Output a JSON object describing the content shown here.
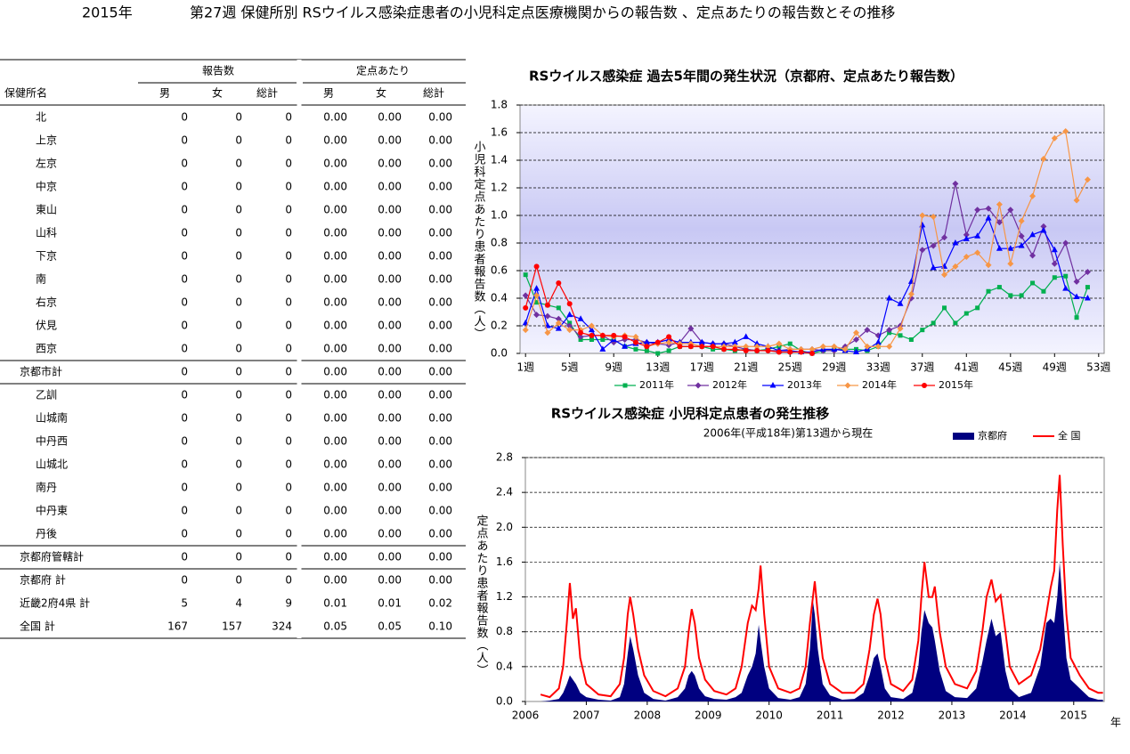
{
  "header": {
    "year": "2015年",
    "title": "第27週 保健所別 RSウイルス感染症患者の小児科定点医療機関からの報告数 、定点あたりの報告数とその推移"
  },
  "table": {
    "group_headers": [
      "報告数",
      "定点あたり"
    ],
    "columns": [
      "保健所名",
      "男",
      "女",
      "総計",
      "男",
      "女",
      "総計"
    ],
    "rows": [
      [
        "北",
        "0",
        "0",
        "0",
        "0.00",
        "0.00",
        "0.00"
      ],
      [
        "上京",
        "0",
        "0",
        "0",
        "0.00",
        "0.00",
        "0.00"
      ],
      [
        "左京",
        "0",
        "0",
        "0",
        "0.00",
        "0.00",
        "0.00"
      ],
      [
        "中京",
        "0",
        "0",
        "0",
        "0.00",
        "0.00",
        "0.00"
      ],
      [
        "東山",
        "0",
        "0",
        "0",
        "0.00",
        "0.00",
        "0.00"
      ],
      [
        "山科",
        "0",
        "0",
        "0",
        "0.00",
        "0.00",
        "0.00"
      ],
      [
        "下京",
        "0",
        "0",
        "0",
        "0.00",
        "0.00",
        "0.00"
      ],
      [
        "南",
        "0",
        "0",
        "0",
        "0.00",
        "0.00",
        "0.00"
      ],
      [
        "右京",
        "0",
        "0",
        "0",
        "0.00",
        "0.00",
        "0.00"
      ],
      [
        "伏見",
        "0",
        "0",
        "0",
        "0.00",
        "0.00",
        "0.00"
      ],
      [
        "西京",
        "0",
        "0",
        "0",
        "0.00",
        "0.00",
        "0.00"
      ],
      [
        "京都市計",
        "0",
        "0",
        "0",
        "0.00",
        "0.00",
        "0.00"
      ],
      [
        "乙訓",
        "0",
        "0",
        "0",
        "0.00",
        "0.00",
        "0.00"
      ],
      [
        "山城南",
        "0",
        "0",
        "0",
        "0.00",
        "0.00",
        "0.00"
      ],
      [
        "中丹西",
        "0",
        "0",
        "0",
        "0.00",
        "0.00",
        "0.00"
      ],
      [
        "山城北",
        "0",
        "0",
        "0",
        "0.00",
        "0.00",
        "0.00"
      ],
      [
        "南丹",
        "0",
        "0",
        "0",
        "0.00",
        "0.00",
        "0.00"
      ],
      [
        "中丹東",
        "0",
        "0",
        "0",
        "0.00",
        "0.00",
        "0.00"
      ],
      [
        "丹後",
        "0",
        "0",
        "0",
        "0.00",
        "0.00",
        "0.00"
      ],
      [
        "京都府管轄計",
        "0",
        "0",
        "0",
        "0.00",
        "0.00",
        "0.00"
      ],
      [
        "京都府 計",
        "0",
        "0",
        "0",
        "0.00",
        "0.00",
        "0.00"
      ],
      [
        "近畿2府4県 計",
        "5",
        "4",
        "9",
        "0.01",
        "0.01",
        "0.02"
      ],
      [
        "全国 計",
        "167",
        "157",
        "324",
        "0.05",
        "0.05",
        "0.10"
      ]
    ]
  },
  "chart_data": [
    {
      "type": "line",
      "title": "RSウイルス感染症 過去5年間の発生状況（京都府、定点あたり報告数）",
      "ylabel": "小児科定点あたり患者報告数（人）",
      "legend": "bottom",
      "grid": true,
      "x": [
        1,
        2,
        3,
        4,
        5,
        6,
        7,
        8,
        9,
        10,
        11,
        12,
        13,
        14,
        15,
        16,
        17,
        18,
        19,
        20,
        21,
        22,
        23,
        24,
        25,
        26,
        27,
        28,
        29,
        30,
        31,
        32,
        33,
        34,
        35,
        36,
        37,
        38,
        39,
        40,
        41,
        42,
        43,
        44,
        45,
        46,
        47,
        48,
        49,
        50,
        51,
        52,
        53
      ],
      "xlim": [
        0.5,
        53.5
      ],
      "xticks": [
        {
          "value": 1,
          "label": "1週"
        },
        {
          "value": 5,
          "label": "5週"
        },
        {
          "value": 9,
          "label": "9週"
        },
        {
          "value": 13,
          "label": "13週"
        },
        {
          "value": 17,
          "label": "17週"
        },
        {
          "value": 21,
          "label": "21週"
        },
        {
          "value": 25,
          "label": "25週"
        },
        {
          "value": 29,
          "label": "29週"
        },
        {
          "value": 33,
          "label": "33週"
        },
        {
          "value": 37,
          "label": "37週"
        },
        {
          "value": 41,
          "label": "41週"
        },
        {
          "value": 45,
          "label": "45週"
        },
        {
          "value": 49,
          "label": "49週"
        },
        {
          "value": 53,
          "label": "53週"
        }
      ],
      "ylim": [
        0,
        1.8
      ],
      "yticks": [
        {
          "value": 0,
          "label": "0.0"
        },
        0.2,
        0.4,
        0.6,
        0.8,
        {
          "value": 1,
          "label": "1.0"
        },
        1.2,
        1.4,
        1.6,
        1.8
      ],
      "series": [
        {
          "name": "2011年",
          "color": "#00b050",
          "marker": "square",
          "values": [
            0.57,
            0.37,
            0.35,
            0.33,
            0.22,
            0.1,
            0.1,
            0.1,
            0.1,
            0.05,
            0.03,
            0.02,
            0.0,
            0.02,
            0.05,
            0.05,
            0.05,
            0.03,
            0.03,
            0.02,
            0.03,
            0.02,
            0.03,
            0.05,
            0.07,
            0.02,
            0.0,
            0.02,
            0.03,
            0.03,
            0.03,
            0.02,
            0.05,
            0.15,
            0.13,
            0.1,
            0.17,
            0.22,
            0.33,
            0.22,
            0.29,
            0.33,
            0.45,
            0.48,
            0.42,
            0.42,
            0.51,
            0.45,
            0.55,
            0.56,
            0.26,
            0.48,
            null
          ]
        },
        {
          "name": "2012年",
          "color": "#7030a0",
          "marker": "diamond",
          "values": [
            0.42,
            0.28,
            0.27,
            0.25,
            0.2,
            0.12,
            0.13,
            0.13,
            0.08,
            0.1,
            0.1,
            0.08,
            0.07,
            0.06,
            0.08,
            0.18,
            0.08,
            0.07,
            0.07,
            0.05,
            0.03,
            0.02,
            0.02,
            0.02,
            0.03,
            0.03,
            0.03,
            0.02,
            0.02,
            0.05,
            0.1,
            0.17,
            0.13,
            0.17,
            0.2,
            0.4,
            0.75,
            0.78,
            0.84,
            1.23,
            0.86,
            1.04,
            1.05,
            0.95,
            1.04,
            0.85,
            0.71,
            0.92,
            0.65,
            0.8,
            0.52,
            0.59,
            null
          ]
        },
        {
          "name": "2013年",
          "color": "#0000ff",
          "marker": "triangle",
          "values": [
            0.22,
            0.47,
            0.2,
            0.18,
            0.28,
            0.25,
            0.17,
            0.03,
            0.1,
            0.05,
            0.07,
            0.08,
            0.08,
            0.1,
            0.08,
            0.08,
            0.08,
            0.07,
            0.07,
            0.08,
            0.12,
            0.07,
            0.05,
            0.02,
            0.02,
            0.01,
            0.01,
            0.03,
            0.03,
            0.02,
            0.01,
            0.03,
            0.08,
            0.4,
            0.36,
            0.52,
            0.93,
            0.62,
            0.63,
            0.8,
            0.83,
            0.85,
            0.98,
            0.76,
            0.76,
            0.78,
            0.86,
            0.89,
            0.75,
            0.47,
            0.41,
            0.4,
            null
          ]
        },
        {
          "name": "2014年",
          "color": "#f79646",
          "marker": "diamond",
          "values": [
            0.17,
            0.42,
            0.15,
            0.22,
            0.17,
            0.17,
            0.2,
            0.13,
            0.12,
            0.13,
            0.12,
            0.05,
            0.07,
            0.08,
            0.07,
            0.07,
            0.05,
            0.05,
            0.05,
            0.05,
            0.05,
            0.05,
            0.05,
            0.07,
            0.03,
            0.03,
            0.03,
            0.05,
            0.05,
            0.03,
            0.15,
            0.05,
            0.05,
            0.05,
            0.18,
            0.43,
            1.0,
            0.99,
            0.57,
            0.63,
            0.7,
            0.73,
            0.64,
            1.08,
            0.65,
            0.96,
            1.14,
            1.41,
            1.56,
            1.61,
            1.11,
            1.26,
            null
          ]
        },
        {
          "name": "2015年",
          "color": "#ff0000",
          "marker": "circle",
          "values": [
            0.33,
            0.63,
            0.35,
            0.51,
            0.36,
            0.15,
            0.13,
            0.13,
            0.13,
            0.12,
            0.08,
            0.05,
            0.08,
            0.12,
            0.05,
            0.05,
            0.05,
            0.05,
            0.03,
            0.03,
            0.02,
            0.02,
            0.02,
            0.01,
            0.01,
            0.01,
            0.0,
            null,
            null,
            null,
            null,
            null,
            null,
            null,
            null,
            null,
            null,
            null,
            null,
            null,
            null,
            null,
            null,
            null,
            null,
            null,
            null,
            null,
            null,
            null,
            null,
            null,
            null
          ]
        }
      ]
    },
    {
      "type": "line",
      "title": "RSウイルス感染症 小児科定点患者の発生推移",
      "subtitle": "2006年(平成18年)第13週から現在",
      "ylabel": "定点あたり患者報告数（人）",
      "xlabel": "年",
      "legend": "top-right",
      "grid": true,
      "x": [
        2006.25,
        2006.4,
        2006.55,
        2006.62,
        2006.68,
        2006.73,
        2006.78,
        2006.83,
        2006.9,
        2007.0,
        2007.2,
        2007.4,
        2007.55,
        2007.62,
        2007.68,
        2007.72,
        2007.77,
        2007.85,
        2007.95,
        2008.1,
        2008.3,
        2008.5,
        2008.62,
        2008.68,
        2008.73,
        2008.78,
        2008.85,
        2008.95,
        2009.1,
        2009.3,
        2009.45,
        2009.55,
        2009.65,
        2009.72,
        2009.78,
        2009.83,
        2009.86,
        2009.92,
        2010.0,
        2010.15,
        2010.35,
        2010.5,
        2010.6,
        2010.67,
        2010.72,
        2010.75,
        2010.8,
        2010.88,
        2011.0,
        2011.2,
        2011.4,
        2011.55,
        2011.65,
        2011.72,
        2011.78,
        2011.83,
        2011.9,
        2012.0,
        2012.2,
        2012.35,
        2012.45,
        2012.5,
        2012.55,
        2012.62,
        2012.68,
        2012.72,
        2012.8,
        2012.9,
        2013.05,
        2013.25,
        2013.4,
        2013.5,
        2013.57,
        2013.65,
        2013.72,
        2013.8,
        2013.88,
        2013.95,
        2014.1,
        2014.3,
        2014.45,
        2014.55,
        2014.62,
        2014.68,
        2014.73,
        2014.77,
        2014.82,
        2014.88,
        2014.95,
        2015.1,
        2015.25,
        2015.4,
        2015.48
      ],
      "xlim": [
        2006,
        2015.5
      ],
      "xticks": [
        2006,
        2007,
        2008,
        2009,
        2010,
        2011,
        2012,
        2013,
        2014,
        2015
      ],
      "ylim": [
        0,
        2.8
      ],
      "yticks": [
        {
          "value": 0,
          "label": "0.0"
        },
        0.4,
        0.8,
        1.2,
        1.6,
        {
          "value": 2,
          "label": "2.0"
        },
        2.4,
        2.8
      ],
      "series": [
        {
          "name": "京都府",
          "color": "#000080",
          "fill": true,
          "values": [
            0.0,
            0.01,
            0.03,
            0.1,
            0.2,
            0.3,
            0.25,
            0.2,
            0.1,
            0.05,
            0.02,
            0.01,
            0.05,
            0.2,
            0.55,
            0.75,
            0.6,
            0.3,
            0.1,
            0.03,
            0.01,
            0.05,
            0.15,
            0.3,
            0.35,
            0.3,
            0.15,
            0.06,
            0.03,
            0.02,
            0.05,
            0.1,
            0.3,
            0.4,
            0.55,
            0.88,
            0.7,
            0.4,
            0.15,
            0.04,
            0.02,
            0.05,
            0.2,
            0.6,
            1.15,
            1.0,
            0.6,
            0.2,
            0.07,
            0.02,
            0.03,
            0.1,
            0.3,
            0.5,
            0.55,
            0.4,
            0.15,
            0.05,
            0.03,
            0.1,
            0.4,
            0.8,
            1.05,
            0.9,
            0.85,
            0.7,
            0.35,
            0.12,
            0.05,
            0.04,
            0.15,
            0.45,
            0.7,
            0.95,
            0.75,
            0.8,
            0.35,
            0.15,
            0.05,
            0.1,
            0.4,
            0.9,
            0.95,
            0.9,
            1.2,
            1.6,
            1.1,
            0.5,
            0.25,
            0.15,
            0.05,
            0.02,
            0.02
          ]
        },
        {
          "name": "全 国",
          "color": "#ff0000",
          "fill": false,
          "values": [
            0.08,
            0.05,
            0.15,
            0.4,
            0.9,
            1.36,
            0.95,
            1.07,
            0.5,
            0.2,
            0.08,
            0.06,
            0.2,
            0.5,
            1.0,
            1.2,
            1.0,
            0.6,
            0.3,
            0.12,
            0.06,
            0.15,
            0.4,
            0.8,
            1.06,
            0.9,
            0.5,
            0.25,
            0.12,
            0.08,
            0.15,
            0.4,
            0.9,
            1.1,
            1.05,
            1.3,
            1.56,
            1.0,
            0.4,
            0.15,
            0.1,
            0.15,
            0.4,
            0.9,
            1.2,
            1.38,
            1.0,
            0.5,
            0.2,
            0.1,
            0.1,
            0.2,
            0.6,
            1.0,
            1.18,
            1.0,
            0.5,
            0.2,
            0.12,
            0.25,
            0.7,
            1.2,
            1.6,
            1.2,
            1.2,
            1.32,
            0.8,
            0.4,
            0.2,
            0.15,
            0.35,
            0.8,
            1.2,
            1.4,
            1.15,
            1.22,
            0.8,
            0.4,
            0.2,
            0.3,
            0.6,
            1.0,
            1.3,
            1.5,
            2.2,
            2.6,
            1.8,
            1.0,
            0.5,
            0.3,
            0.15,
            0.1,
            0.1
          ]
        }
      ]
    }
  ]
}
